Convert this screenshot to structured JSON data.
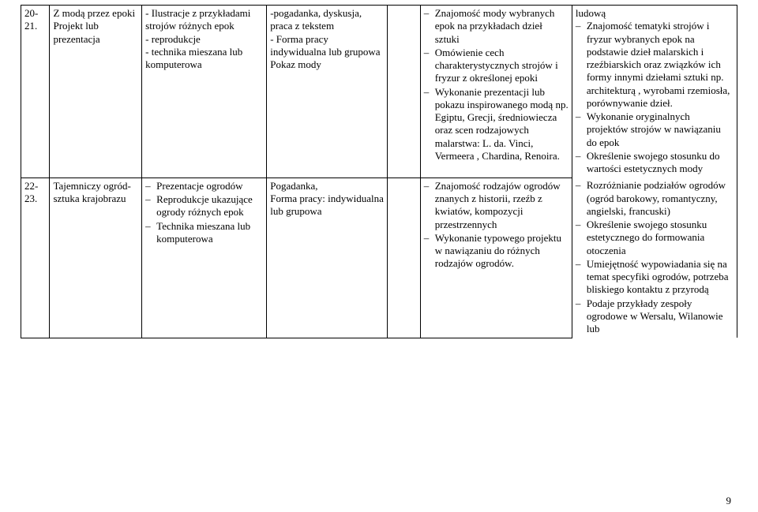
{
  "rows": [
    {
      "num": "20-21.",
      "topic": "Z modą przez epoki\nProjekt lub prezentacja",
      "materials_plain": "- Ilustracje z przykładami strojów różnych epok\n- reprodukcje\n- technika mieszana lub komputerowa",
      "methods_plain": "-pogadanka, dyskusja, praca z tekstem\n- Forma pracy indywidualna lub grupowa\nPokaz mody",
      "hours": "",
      "basic": [
        "Znajomość mody wybranych epok na przykładach dzieł sztuki",
        "Omówienie cech charakterystycznych strojów i fryzur z określonej epoki",
        "Wykonanie prezentacji lub pokazu inspirowanego modą np. Egiptu, Grecji, średniowiecza oraz scen rodzajowych malarstwa: L. da. Vinci, Vermeera , Chardina, Renoira."
      ],
      "ext_pre": "ludową",
      "ext": [
        "Znajomość tematyki strojów i fryzur wybranych epok  na podstawie  dzieł malarskich i rzeźbiarskich oraz związków ich formy innymi dziełami sztuki np. architekturą , wyrobami rzemiosła, porównywanie dzieł.",
        "Wykonanie oryginalnych projektów strojów w nawiązaniu do epok",
        "Określenie swojego stosunku do wartości estetycznych mody"
      ]
    },
    {
      "num": "22-23.",
      "topic": "Tajemniczy ogród- sztuka krajobrazu",
      "materials_dash": [
        "Prezentacje ogrodów",
        "Reprodukcje ukazujące ogrody różnych epok",
        "Technika mieszana lub komputerowa"
      ],
      "methods_plain": "Pogadanka,\nForma pracy: indywidualna lub grupowa",
      "hours": "",
      "basic": [
        "Znajomość rodzajów ogrodów znanych z historii, rzeźb z kwiatów, kompozycji przestrzennych",
        "Wykonanie typowego projektu w nawiązaniu do różnych rodzajów ogrodów."
      ],
      "ext": [
        "Rozróżnianie podziałów ogrodów (ogród barokowy, romantyczny, angielski, francuski)",
        "Określenie swojego stosunku estetycznego do formowania otoczenia",
        "Umiejętność wypowiadania się na temat specyfiki ogrodów, potrzeba bliskiego kontaktu z przyrodą",
        "Podaje przykłady zespoły ogrodowe w Wersalu, Wilanowie lub"
      ]
    }
  ],
  "pagenum": "9"
}
